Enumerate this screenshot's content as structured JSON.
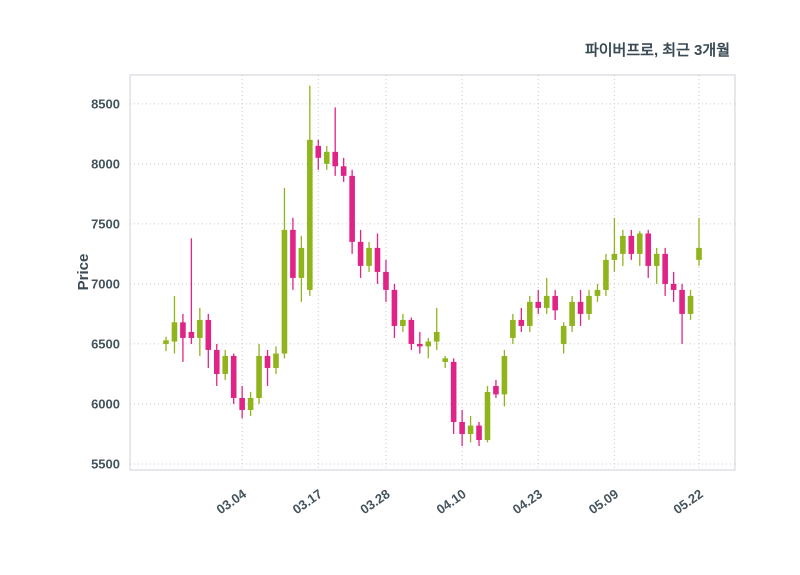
{
  "header": {
    "title": "파이버프로, 최근 3개월"
  },
  "chart_data": {
    "type": "candlestick",
    "title": "파이버프로, 최근 3개월",
    "ylabel": "Price",
    "ylim": [
      5450,
      8740
    ],
    "yticks": [
      5500,
      6000,
      6500,
      7000,
      7500,
      8000,
      8500
    ],
    "grid": "dotted",
    "colors": {
      "up": "#90b41c",
      "down": "#e02487",
      "grid": "#c9c9c9",
      "axis_text": "#44535c",
      "title_text": "#3a4b55",
      "border": "#ccd2d7"
    },
    "xticks": [
      {
        "index": 9,
        "label": "03.04"
      },
      {
        "index": 18,
        "label": "03.17"
      },
      {
        "index": 26,
        "label": "03.28"
      },
      {
        "index": 35,
        "label": "04.10"
      },
      {
        "index": 44,
        "label": "04.23"
      },
      {
        "index": 53,
        "label": "05.09"
      },
      {
        "index": 63,
        "label": "05.22"
      }
    ],
    "ohlc_order": [
      "open",
      "high",
      "low",
      "close"
    ],
    "candles": [
      [
        6500,
        6560,
        6440,
        6530
      ],
      [
        6520,
        6900,
        6420,
        6680
      ],
      [
        6680,
        6750,
        6350,
        6550
      ],
      [
        6600,
        7380,
        6500,
        6550
      ],
      [
        6550,
        6800,
        6400,
        6700
      ],
      [
        6700,
        6750,
        6300,
        6450
      ],
      [
        6450,
        6500,
        6150,
        6250
      ],
      [
        6250,
        6450,
        6200,
        6400
      ],
      [
        6400,
        6420,
        6000,
        6050
      ],
      [
        6050,
        6150,
        5880,
        5950
      ],
      [
        5950,
        6100,
        5900,
        6050
      ],
      [
        6050,
        6500,
        6000,
        6400
      ],
      [
        6400,
        6450,
        6150,
        6300
      ],
      [
        6300,
        6480,
        6250,
        6420
      ],
      [
        6420,
        7800,
        6380,
        7450
      ],
      [
        7450,
        7550,
        6950,
        7050
      ],
      [
        7050,
        7400,
        6850,
        7300
      ],
      [
        6950,
        8650,
        6900,
        8200
      ],
      [
        8150,
        8200,
        7950,
        8050
      ],
      [
        8000,
        8150,
        7950,
        8100
      ],
      [
        8100,
        8470,
        7900,
        7980
      ],
      [
        7980,
        8050,
        7850,
        7900
      ],
      [
        7900,
        7950,
        7250,
        7350
      ],
      [
        7350,
        7450,
        7050,
        7150
      ],
      [
        7150,
        7350,
        7100,
        7300
      ],
      [
        7300,
        7420,
        7000,
        7100
      ],
      [
        7100,
        7200,
        6850,
        6950
      ],
      [
        6950,
        7000,
        6550,
        6650
      ],
      [
        6650,
        6750,
        6600,
        6700
      ],
      [
        6700,
        6720,
        6450,
        6500
      ],
      [
        6500,
        6600,
        6420,
        6480
      ],
      [
        6480,
        6550,
        6380,
        6520
      ],
      [
        6520,
        6800,
        6450,
        6600
      ],
      [
        6350,
        6400,
        6300,
        6380
      ],
      [
        6350,
        6380,
        5750,
        5850
      ],
      [
        5850,
        5950,
        5650,
        5750
      ],
      [
        5750,
        5900,
        5680,
        5820
      ],
      [
        5820,
        5850,
        5650,
        5700
      ],
      [
        5700,
        6150,
        5680,
        6100
      ],
      [
        6150,
        6200,
        6050,
        6080
      ],
      [
        6080,
        6450,
        5980,
        6400
      ],
      [
        6550,
        6750,
        6500,
        6700
      ],
      [
        6700,
        6800,
        6600,
        6650
      ],
      [
        6650,
        6900,
        6600,
        6850
      ],
      [
        6850,
        6950,
        6750,
        6800
      ],
      [
        6800,
        7050,
        6750,
        6900
      ],
      [
        6900,
        6950,
        6700,
        6780
      ],
      [
        6500,
        6680,
        6420,
        6650
      ],
      [
        6650,
        6900,
        6600,
        6850
      ],
      [
        6850,
        6950,
        6650,
        6750
      ],
      [
        6750,
        6950,
        6700,
        6900
      ],
      [
        6900,
        7000,
        6850,
        6950
      ],
      [
        6950,
        7250,
        6900,
        7200
      ],
      [
        7200,
        7550,
        7100,
        7250
      ],
      [
        7250,
        7450,
        7150,
        7400
      ],
      [
        7400,
        7450,
        7200,
        7250
      ],
      [
        7250,
        7440,
        7150,
        7420
      ],
      [
        7420,
        7450,
        7050,
        7150
      ],
      [
        7150,
        7300,
        7000,
        7250
      ],
      [
        7250,
        7300,
        6900,
        7000
      ],
      [
        7000,
        7100,
        6850,
        6950
      ],
      [
        6950,
        7000,
        6500,
        6750
      ],
      [
        6750,
        6950,
        6700,
        6900
      ],
      [
        7200,
        7550,
        7150,
        7300
      ]
    ]
  }
}
